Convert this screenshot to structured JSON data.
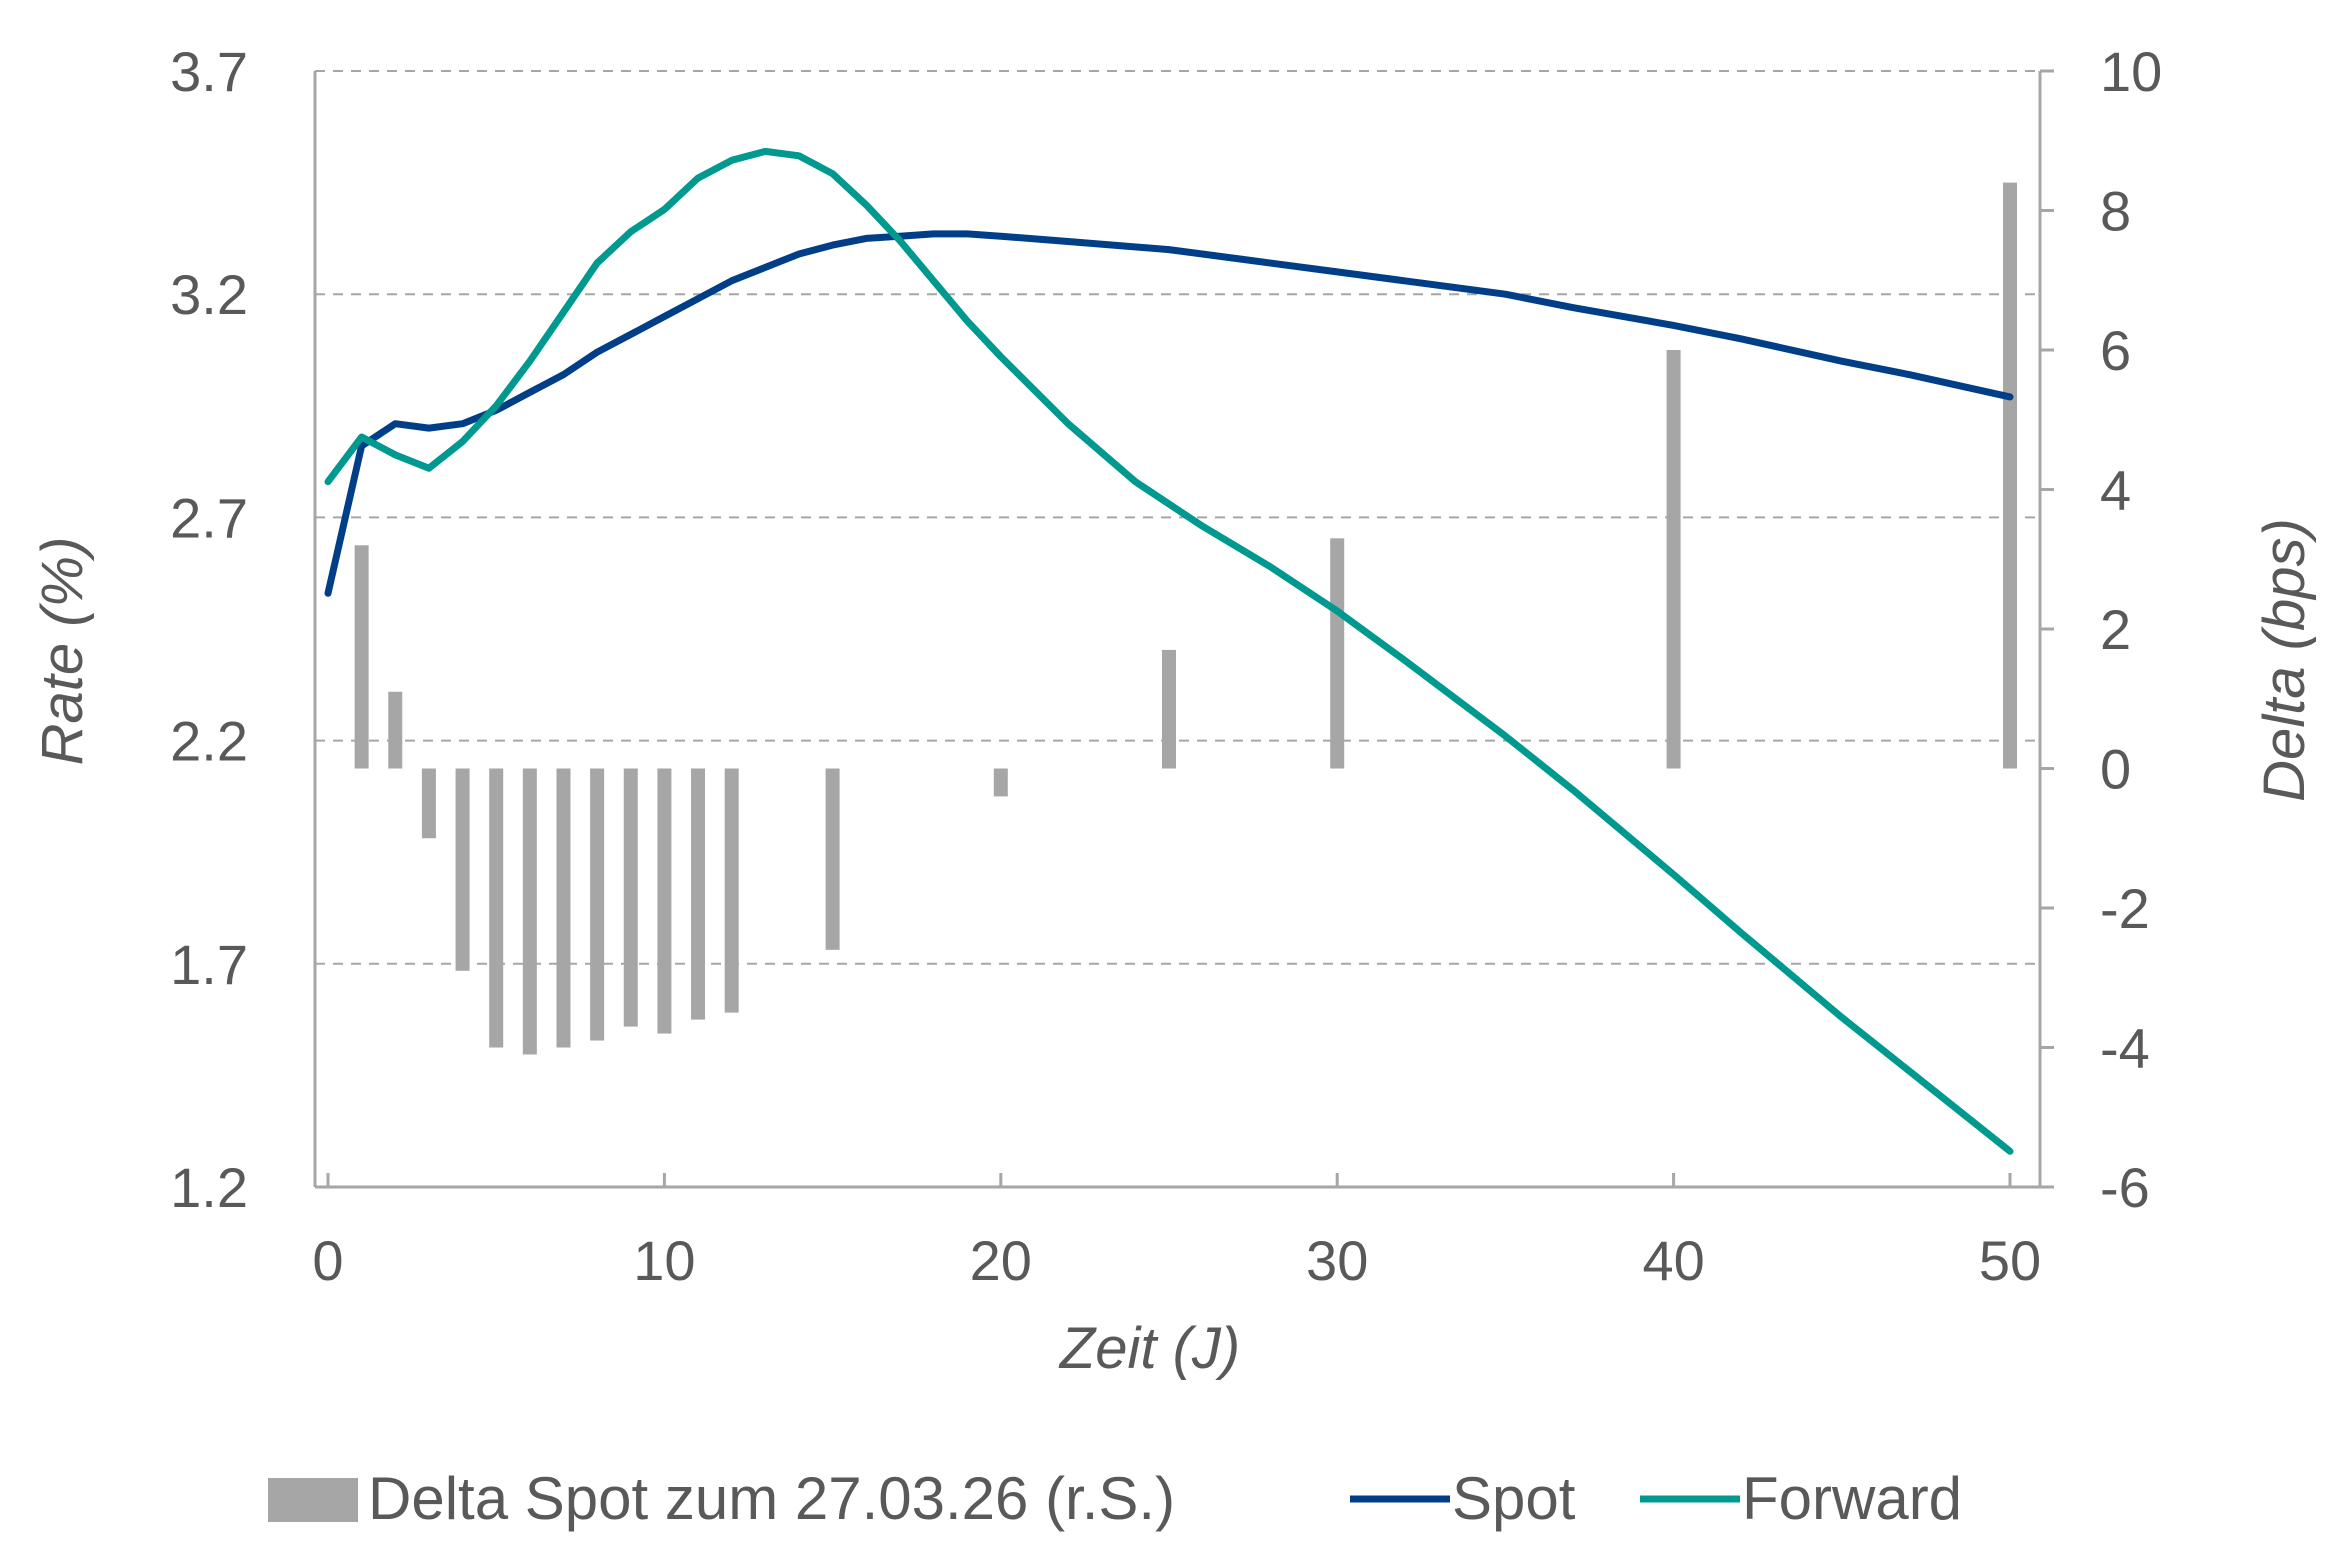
{
  "chart_data": {
    "type": "line",
    "title": "",
    "xlabel": "Zeit (J)",
    "ylabel": "Rate (%)",
    "y2label": "Delta (bps)",
    "xlim": [
      0,
      50
    ],
    "ylim": [
      1.2,
      3.7
    ],
    "y2lim": [
      -6,
      10
    ],
    "x_ticks": [
      "0",
      "10",
      "20",
      "30",
      "40",
      "50"
    ],
    "y_ticks": [
      "1.2",
      "1.7",
      "2.2",
      "2.7",
      "3.2",
      "3.7"
    ],
    "y2_ticks": [
      "-6",
      "-4",
      "-2",
      "0",
      "2",
      "4",
      "6",
      "8",
      "10"
    ],
    "grid": "horizontal dashed",
    "legend_position": "bottom",
    "colors": {
      "delta": "#a6a6a6",
      "spot": "#003f87",
      "forward": "#00998f",
      "text": "#595959"
    },
    "bars": {
      "name": "Delta Spot zum 27.03.26 (r.S.)",
      "axis": "right",
      "x": [
        1,
        2,
        3,
        4,
        5,
        6,
        7,
        8,
        9,
        10,
        11,
        12,
        15,
        20,
        25,
        30,
        40,
        50
      ],
      "values": [
        3.2,
        1.1,
        -1.0,
        -2.9,
        -4.0,
        -4.1,
        -4.0,
        -3.9,
        -3.7,
        -3.8,
        -3.6,
        -3.5,
        -2.6,
        -0.4,
        1.7,
        3.3,
        6.0,
        8.4
      ]
    },
    "series": [
      {
        "name": "Spot",
        "axis": "left",
        "x": [
          0,
          1,
          2,
          3,
          4,
          5,
          6,
          7,
          8,
          9,
          10,
          11,
          12,
          13,
          14,
          15,
          16,
          17,
          18,
          19,
          20,
          22,
          25,
          27,
          30,
          32,
          35,
          37,
          40,
          42,
          45,
          47,
          50
        ],
        "values": [
          2.53,
          2.86,
          2.91,
          2.9,
          2.91,
          2.94,
          2.98,
          3.02,
          3.07,
          3.11,
          3.15,
          3.19,
          3.23,
          3.26,
          3.29,
          3.31,
          3.325,
          3.33,
          3.335,
          3.335,
          3.33,
          3.318,
          3.3,
          3.28,
          3.25,
          3.23,
          3.2,
          3.17,
          3.13,
          3.1,
          3.05,
          3.02,
          2.97
        ]
      },
      {
        "name": "Forward",
        "axis": "left",
        "x": [
          0,
          1,
          2,
          3,
          4,
          5,
          6,
          7,
          8,
          9,
          10,
          11,
          12,
          13,
          14,
          15,
          16,
          17,
          18,
          19,
          20,
          22,
          24,
          26,
          28,
          30,
          32,
          35,
          37,
          40,
          42,
          45,
          47,
          50
        ],
        "values": [
          2.78,
          2.88,
          2.84,
          2.81,
          2.87,
          2.95,
          3.05,
          3.16,
          3.27,
          3.34,
          3.39,
          3.46,
          3.5,
          3.52,
          3.51,
          3.47,
          3.4,
          3.32,
          3.23,
          3.14,
          3.06,
          2.91,
          2.78,
          2.68,
          2.59,
          2.49,
          2.38,
          2.21,
          2.09,
          1.9,
          1.77,
          1.58,
          1.46,
          1.28
        ]
      }
    ]
  }
}
